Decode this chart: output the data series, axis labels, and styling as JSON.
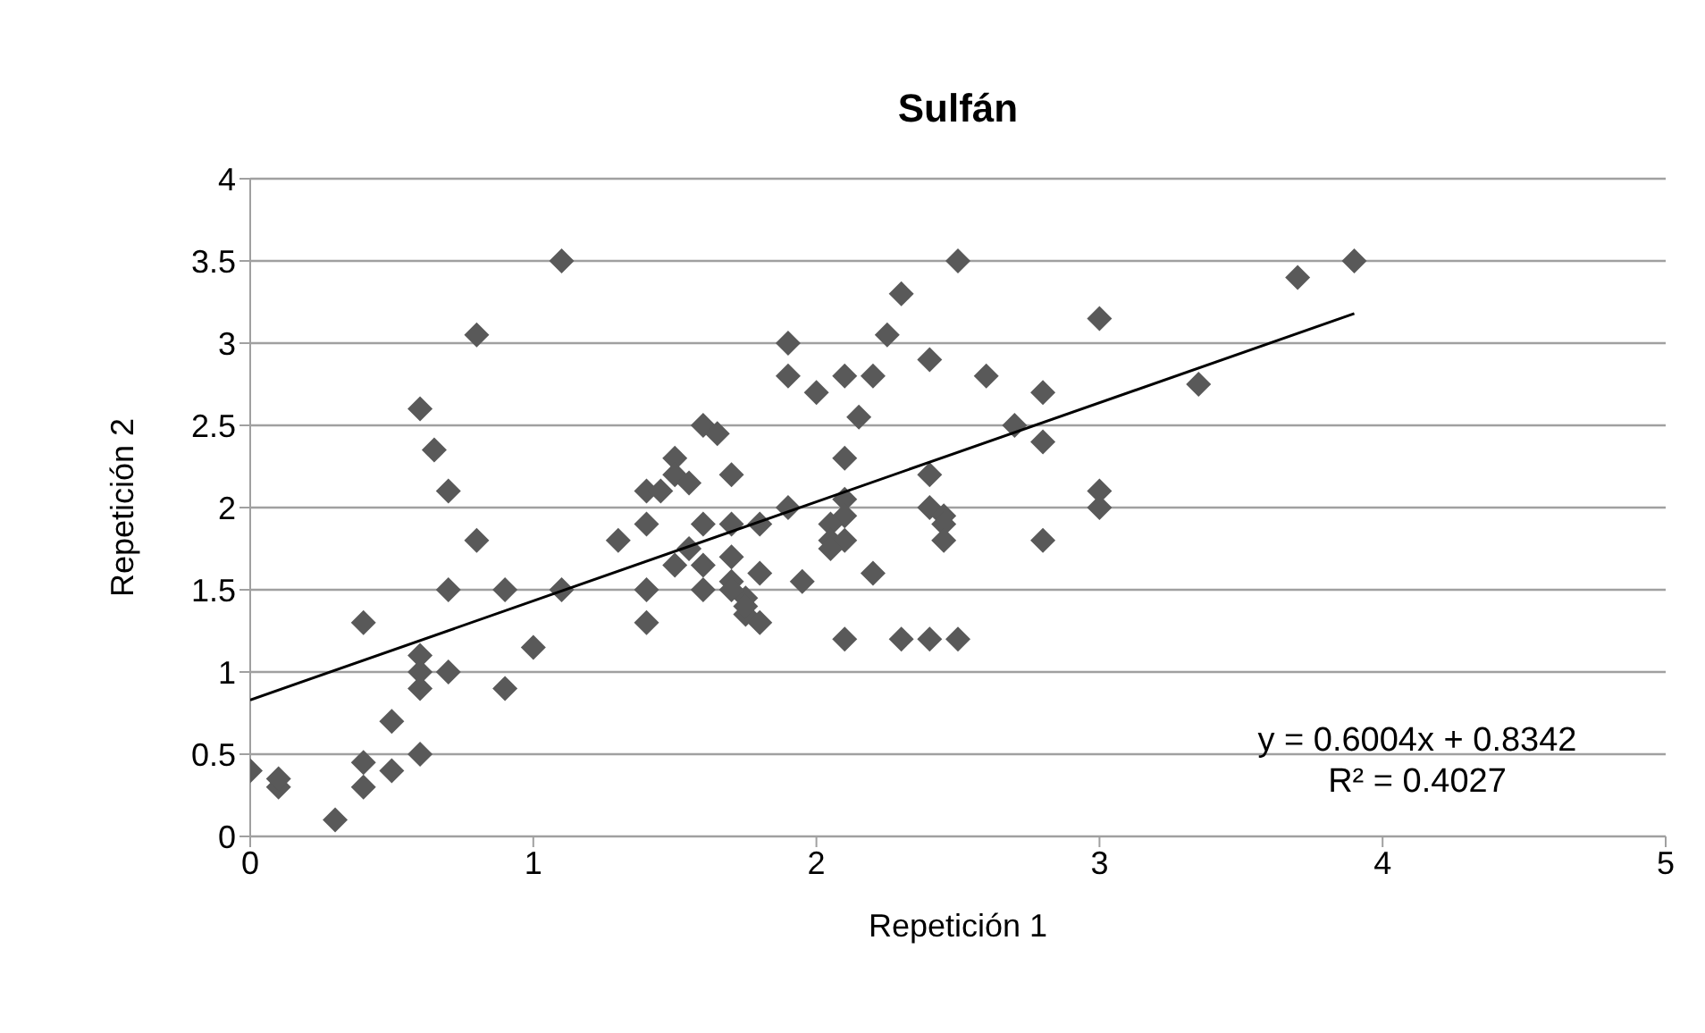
{
  "chart_data": {
    "type": "scatter",
    "title": "Sulfán",
    "xlabel": "Repetición 1",
    "ylabel": "Repetición 2",
    "xlim": [
      0,
      5
    ],
    "xticks": [
      0,
      1,
      2,
      3,
      4,
      5
    ],
    "ylim": [
      0,
      4
    ],
    "yticks": [
      0,
      0.5,
      1,
      1.5,
      2,
      2.5,
      3,
      3.5,
      4
    ],
    "grid": "y",
    "marker": "diamond",
    "annotations": [
      "y = 0.6004x + 0.8342",
      "R² = 0.4027"
    ],
    "series": [
      {
        "color": "#595959",
        "x": [
          0,
          0.1,
          0.1,
          0.3,
          0.4,
          0.4,
          0.5,
          0.5,
          0.6,
          0.4,
          0.6,
          0.6,
          0.6,
          0.7,
          0.9,
          1,
          0.7,
          0.9,
          1.1,
          0.6,
          0.65,
          0.7,
          0.8,
          0.8,
          1.1,
          1.3,
          1.4,
          1.4,
          1.4,
          1.4,
          1.5,
          1.45,
          1.5,
          1.55,
          1.6,
          1.65,
          1.7,
          1.6,
          1.7,
          1.55,
          1.5,
          1.6,
          1.7,
          1.6,
          1.7,
          1.75,
          1.8,
          1.8,
          1.7,
          1.75,
          1.8,
          1.75,
          1.9,
          1.9,
          2,
          2.1,
          2.2,
          2.25,
          2.3,
          2.5,
          2.4,
          2.6,
          2.8,
          3,
          2.7,
          2.8,
          2.15,
          2.1,
          2.1,
          2.1,
          2.05,
          2.05,
          2.1,
          2.05,
          1.9,
          1.95,
          2.2,
          2.1,
          2.3,
          2.4,
          2.5,
          2.4,
          2.4,
          2.45,
          2.45,
          2.45,
          2.8,
          3,
          3,
          3.9,
          3.7,
          3.35
        ],
        "values": [
          0.4,
          0.3,
          0.35,
          0.1,
          0.3,
          0.45,
          0.4,
          0.7,
          0.5,
          1.3,
          0.9,
          1,
          1.1,
          1,
          0.9,
          1.15,
          1.5,
          1.5,
          1.5,
          2.6,
          2.35,
          2.1,
          1.8,
          3.05,
          3.5,
          1.8,
          2.1,
          1.9,
          1.5,
          1.3,
          2.3,
          2.1,
          2.2,
          2.15,
          2.5,
          2.45,
          2.2,
          1.9,
          1.9,
          1.75,
          1.65,
          1.65,
          1.7,
          1.5,
          1.55,
          1.45,
          1.9,
          1.6,
          1.5,
          1.35,
          1.3,
          1.4,
          3,
          2.8,
          2.7,
          2.8,
          2.8,
          3.05,
          3.3,
          3.5,
          2.9,
          2.8,
          2.7,
          3.15,
          2.5,
          2.4,
          2.55,
          2.3,
          2.05,
          1.95,
          1.9,
          1.8,
          1.8,
          1.75,
          2,
          1.55,
          1.6,
          1.2,
          1.2,
          1.2,
          1.2,
          2.2,
          2,
          1.95,
          1.9,
          1.8,
          1.8,
          2.1,
          2,
          3.5,
          3.4,
          2.75
        ]
      },
      {
        "type": "line",
        "color": "#000000",
        "marker": "none",
        "x": [
          0,
          3.9
        ],
        "values": [
          0.83,
          3.18
        ]
      }
    ]
  }
}
